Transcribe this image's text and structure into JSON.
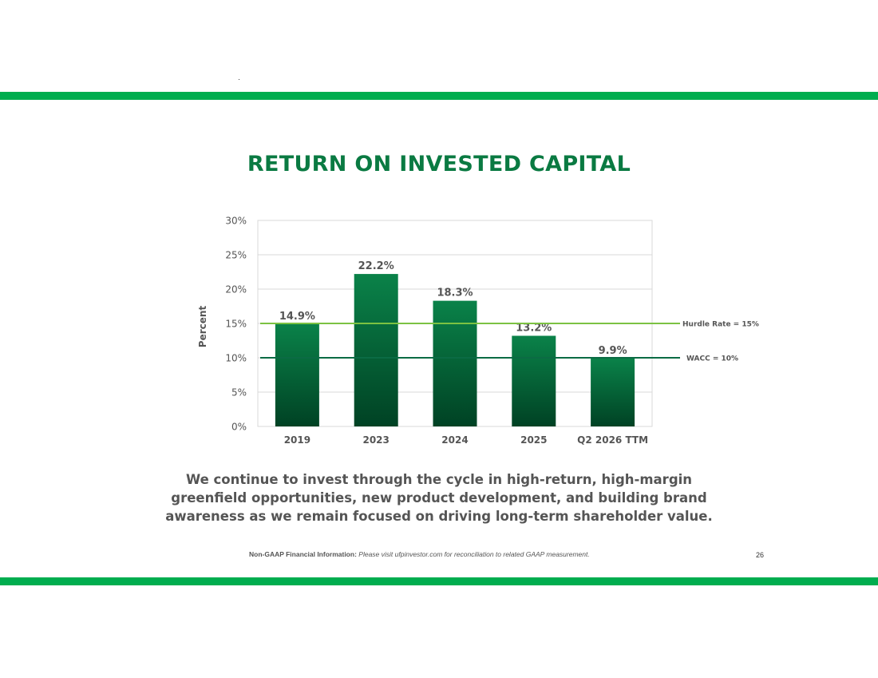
{
  "slide": {
    "title": "RETURN ON INVESTED CAPITAL",
    "body_text": "We continue to invest through the cycle in high-return, high-margin greenfield opportunities, new product development, and building brand awareness as we remain focused on driving long-term shareholder value.",
    "footnote_label": "Non-GAAP Financial Information:",
    "footnote_text": "Please visit ufpinvestor.com for reconciliation to related GAAP measurement.",
    "page_number": "26",
    "accent_color": "#00ad4f",
    "title_color": "#0a7a42"
  },
  "chart_data": {
    "type": "bar",
    "title": "",
    "categories": [
      "2019",
      "2023",
      "2024",
      "2025",
      "Q2 2026 TTM"
    ],
    "values": [
      14.9,
      22.2,
      18.3,
      13.2,
      9.9
    ],
    "data_labels": [
      "14.9%",
      "22.2%",
      "18.3%",
      "13.2%",
      "9.9%"
    ],
    "xlabel": "",
    "ylabel": "Percent",
    "ylim": [
      0,
      30
    ],
    "yticks": [
      0,
      5,
      10,
      15,
      20,
      25,
      30
    ],
    "ytick_labels": [
      "0%",
      "5%",
      "10%",
      "15%",
      "20%",
      "25%",
      "30%"
    ],
    "grid": true,
    "bar_color_top": "#0a8249",
    "bar_color_bottom": "#004224",
    "reference_lines": [
      {
        "name": "Hurdle Rate = 15%",
        "value": 15,
        "color": "#7cc242"
      },
      {
        "name": "WACC = 10%",
        "value": 10,
        "color": "#0b6b44"
      }
    ]
  }
}
